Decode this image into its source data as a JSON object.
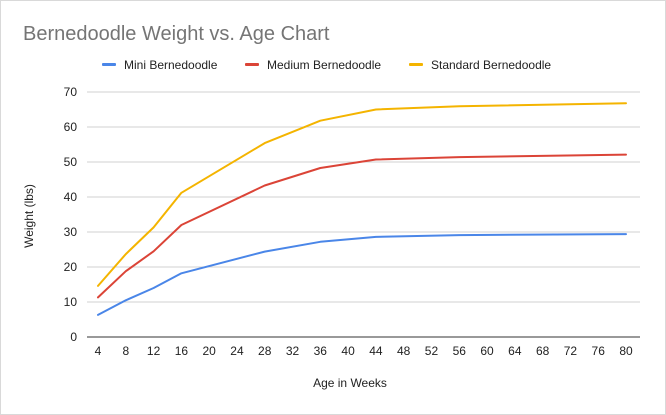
{
  "chart_data": {
    "type": "line",
    "title": "Bernedoodle Weight vs. Age Chart",
    "xlabel": "Age in Weeks",
    "ylabel": "Weight (lbs)",
    "x": [
      4,
      8,
      12,
      16,
      20,
      24,
      28,
      32,
      36,
      40,
      44,
      48,
      52,
      56,
      60,
      64,
      68,
      72,
      76,
      80
    ],
    "xlim": [
      4,
      80
    ],
    "ylim": [
      0,
      70
    ],
    "yticks": [
      0,
      10,
      20,
      30,
      40,
      50,
      60,
      70
    ],
    "grid": true,
    "legend_position": "top",
    "series": [
      {
        "name": "Mini Bernedoodle",
        "color": "#4a86e8",
        "x": [
          4,
          8,
          12,
          16,
          28,
          36,
          44,
          56,
          80
        ],
        "values": [
          6.3,
          10.5,
          14,
          18.2,
          24.4,
          27.2,
          28.6,
          29.1,
          29.4
        ]
      },
      {
        "name": "Medium Bernedoodle",
        "color": "#db4437",
        "x": [
          4,
          8,
          12,
          16,
          28,
          36,
          44,
          56,
          80
        ],
        "values": [
          11.3,
          18.8,
          24.5,
          32,
          43.3,
          48.3,
          50.7,
          51.4,
          52.1
        ]
      },
      {
        "name": "Standard Bernedoodle",
        "color": "#f4b400",
        "x": [
          4,
          8,
          12,
          16,
          28,
          36,
          44,
          56,
          80
        ],
        "values": [
          14.6,
          23.7,
          31.3,
          41.2,
          55.4,
          61.8,
          65,
          65.9,
          66.8
        ]
      }
    ]
  }
}
